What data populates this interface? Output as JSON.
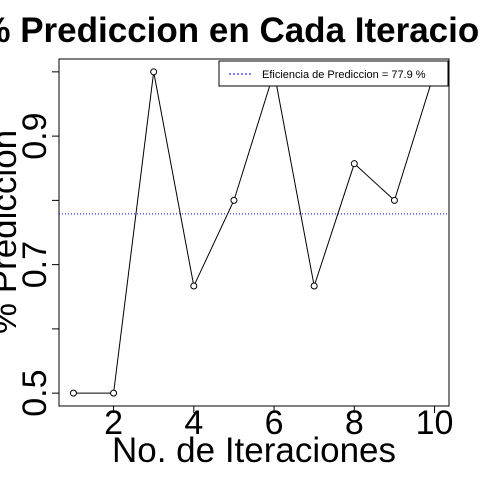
{
  "chart_data": {
    "type": "line",
    "title": "% Prediccion en Cada Iteracion",
    "xlabel": "No. de Iteraciones",
    "ylabel": "% Prediccion",
    "x": [
      1,
      2,
      3,
      4,
      5,
      6,
      7,
      8,
      9,
      10
    ],
    "series": [
      {
        "values": [
          0.5,
          0.5,
          1.0,
          0.6667,
          0.8,
          1.0,
          0.6667,
          0.8571,
          0.8,
          1.0
        ],
        "color": "#000000"
      }
    ],
    "reference_line": {
      "y": 0.779,
      "color": "#0000ff",
      "style": "dotted"
    },
    "legend": {
      "label": "Eficiencia de Prediccion = 77.9 %",
      "position": "top-right"
    },
    "xticks": [
      2,
      4,
      6,
      8,
      10
    ],
    "xtick_labels": [
      "2",
      "4",
      "6",
      "8",
      "10"
    ],
    "yticks": [
      0.5,
      0.6,
      0.7,
      0.8,
      0.9,
      1.0
    ],
    "ytick_labels": [
      "0.5",
      "0.7",
      "0.9"
    ],
    "xlim": [
      0.64,
      10.36
    ],
    "ylim": [
      0.48,
      1.02
    ],
    "grid": false
  }
}
